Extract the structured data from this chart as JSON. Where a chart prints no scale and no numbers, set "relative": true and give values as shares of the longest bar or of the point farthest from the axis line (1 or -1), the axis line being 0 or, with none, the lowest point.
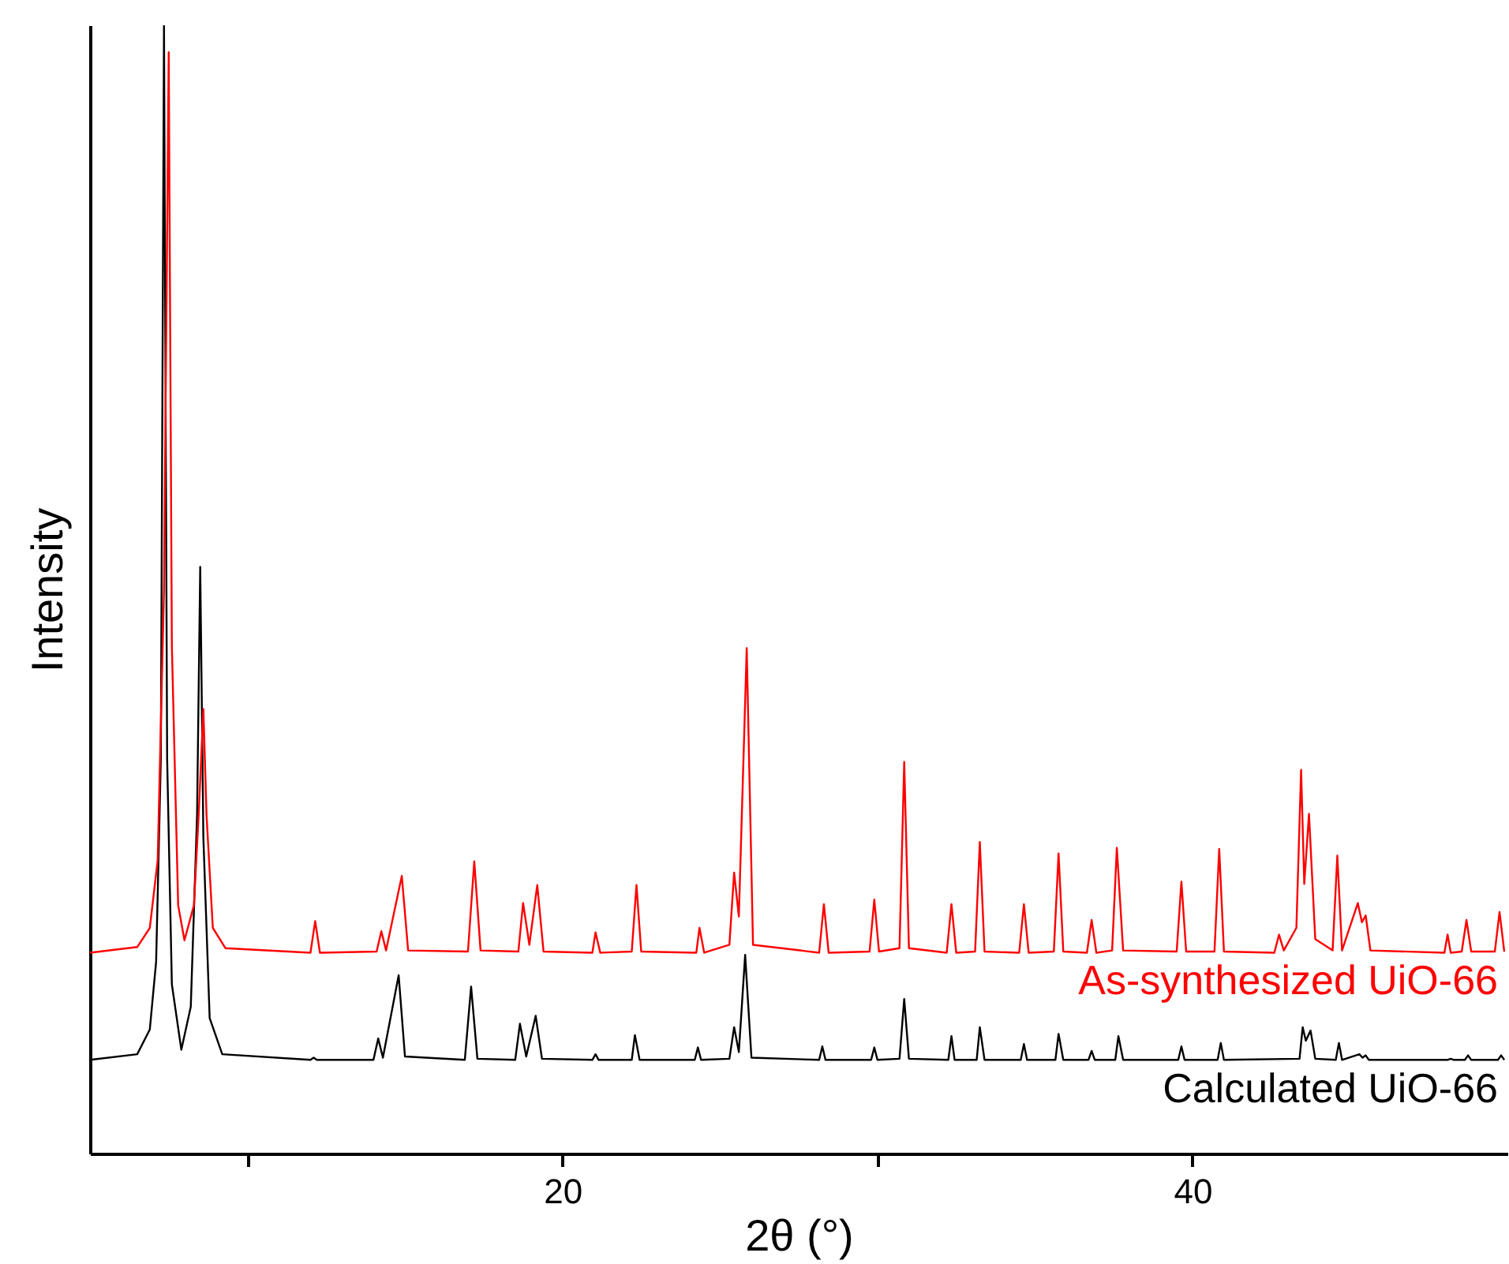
{
  "chart_data": {
    "type": "line",
    "relative": true,
    "xlabel": "2θ (°)",
    "ylabel": "Intensity",
    "xlim": [
      5,
      50
    ],
    "xticks": [
      {
        "value": 10,
        "label": null
      },
      20,
      {
        "value": 30,
        "label": null
      },
      40
    ],
    "grid": false,
    "legend": false,
    "marker": "none",
    "line_style": "solid",
    "series": [
      {
        "name": "Calculated UiO-66",
        "color": "#000000",
        "x": [
          5,
          6.5,
          6.9,
          7.1,
          7.25,
          7.35,
          7.45,
          7.6,
          7.9,
          8.2,
          8.4,
          8.5,
          8.6,
          8.8,
          9.2,
          12.0,
          12.1,
          12.2,
          14.0,
          14.15,
          14.3,
          14.8,
          15.0,
          16.9,
          17.1,
          17.3,
          18.5,
          18.65,
          18.85,
          19.15,
          19.35,
          20.95,
          21.05,
          21.15,
          22.2,
          22.3,
          22.45,
          24.2,
          24.3,
          24.4,
          25.3,
          25.45,
          25.6,
          25.8,
          26.0,
          28.15,
          28.25,
          28.35,
          29.8,
          29.9,
          30.0,
          30.7,
          30.85,
          31.0,
          32.25,
          32.35,
          32.45,
          33.15,
          33.25,
          33.4,
          34.55,
          34.65,
          34.75,
          35.65,
          35.75,
          35.9,
          36.7,
          36.8,
          36.9,
          37.55,
          37.65,
          37.8,
          39.55,
          39.65,
          39.75,
          40.8,
          40.9,
          41.0,
          43.4,
          43.5,
          43.6,
          43.75,
          43.9,
          44.55,
          44.65,
          44.75,
          45.3,
          45.4,
          45.5,
          45.6,
          48.1,
          48.2,
          48.3,
          48.65,
          48.75,
          48.85,
          49.7,
          49.8,
          49.9
        ],
        "values": [
          0.083,
          0.088,
          0.11,
          0.17,
          0.35,
          1.0,
          0.35,
          0.15,
          0.092,
          0.13,
          0.3,
          0.52,
          0.28,
          0.12,
          0.088,
          0.083,
          0.085,
          0.083,
          0.083,
          0.102,
          0.085,
          0.158,
          0.086,
          0.083,
          0.148,
          0.084,
          0.083,
          0.115,
          0.086,
          0.122,
          0.084,
          0.083,
          0.088,
          0.083,
          0.083,
          0.105,
          0.083,
          0.083,
          0.094,
          0.083,
          0.084,
          0.112,
          0.09,
          0.176,
          0.085,
          0.083,
          0.095,
          0.083,
          0.083,
          0.094,
          0.083,
          0.084,
          0.137,
          0.084,
          0.083,
          0.104,
          0.083,
          0.083,
          0.112,
          0.083,
          0.083,
          0.097,
          0.083,
          0.083,
          0.106,
          0.083,
          0.083,
          0.091,
          0.083,
          0.083,
          0.104,
          0.083,
          0.083,
          0.095,
          0.083,
          0.083,
          0.098,
          0.083,
          0.084,
          0.112,
          0.1,
          0.109,
          0.084,
          0.083,
          0.098,
          0.083,
          0.088,
          0.085,
          0.087,
          0.083,
          0.083,
          0.084,
          0.083,
          0.083,
          0.087,
          0.083,
          0.083,
          0.087,
          0.083
        ]
      },
      {
        "name": "As-synthesized UiO-66",
        "color": "#ff0000",
        "x": [
          5,
          6.5,
          6.9,
          7.15,
          7.35,
          7.5,
          7.6,
          7.8,
          8.0,
          8.3,
          8.45,
          8.6,
          8.7,
          8.9,
          9.3,
          12.0,
          12.15,
          12.3,
          14.1,
          14.25,
          14.4,
          14.9,
          15.1,
          17.0,
          17.2,
          17.4,
          18.6,
          18.75,
          18.95,
          19.2,
          19.4,
          20.95,
          21.05,
          21.2,
          22.2,
          22.35,
          22.5,
          24.25,
          24.35,
          24.5,
          25.3,
          25.45,
          25.6,
          25.85,
          26.05,
          28.15,
          28.3,
          28.45,
          29.75,
          29.9,
          30.05,
          30.7,
          30.85,
          31.0,
          32.2,
          32.35,
          32.5,
          33.1,
          33.25,
          33.4,
          34.5,
          34.65,
          34.8,
          35.6,
          35.75,
          35.9,
          36.65,
          36.8,
          36.95,
          37.45,
          37.6,
          37.8,
          39.5,
          39.65,
          39.8,
          40.7,
          40.85,
          41.0,
          42.6,
          42.75,
          42.9,
          43.3,
          43.45,
          43.55,
          43.7,
          43.9,
          44.45,
          44.6,
          44.75,
          45.25,
          45.38,
          45.5,
          45.65,
          48.0,
          48.1,
          48.2,
          48.55,
          48.7,
          48.85,
          49.6,
          49.75,
          49.9
        ],
        "values": [
          0.178,
          0.183,
          0.2,
          0.26,
          0.5,
          0.976,
          0.45,
          0.22,
          0.189,
          0.22,
          0.3,
          0.394,
          0.3,
          0.2,
          0.182,
          0.178,
          0.206,
          0.178,
          0.179,
          0.197,
          0.18,
          0.246,
          0.18,
          0.179,
          0.259,
          0.18,
          0.179,
          0.222,
          0.185,
          0.238,
          0.179,
          0.178,
          0.196,
          0.178,
          0.179,
          0.238,
          0.179,
          0.178,
          0.2,
          0.178,
          0.185,
          0.249,
          0.21,
          0.448,
          0.185,
          0.178,
          0.221,
          0.178,
          0.179,
          0.225,
          0.179,
          0.182,
          0.347,
          0.182,
          0.178,
          0.221,
          0.178,
          0.179,
          0.276,
          0.179,
          0.178,
          0.221,
          0.178,
          0.179,
          0.266,
          0.179,
          0.178,
          0.207,
          0.178,
          0.18,
          0.271,
          0.18,
          0.179,
          0.241,
          0.179,
          0.179,
          0.27,
          0.179,
          0.178,
          0.194,
          0.18,
          0.2,
          0.34,
          0.239,
          0.301,
          0.19,
          0.18,
          0.264,
          0.18,
          0.222,
          0.205,
          0.211,
          0.18,
          0.178,
          0.194,
          0.178,
          0.179,
          0.207,
          0.179,
          0.179,
          0.214,
          0.179
        ]
      }
    ]
  }
}
